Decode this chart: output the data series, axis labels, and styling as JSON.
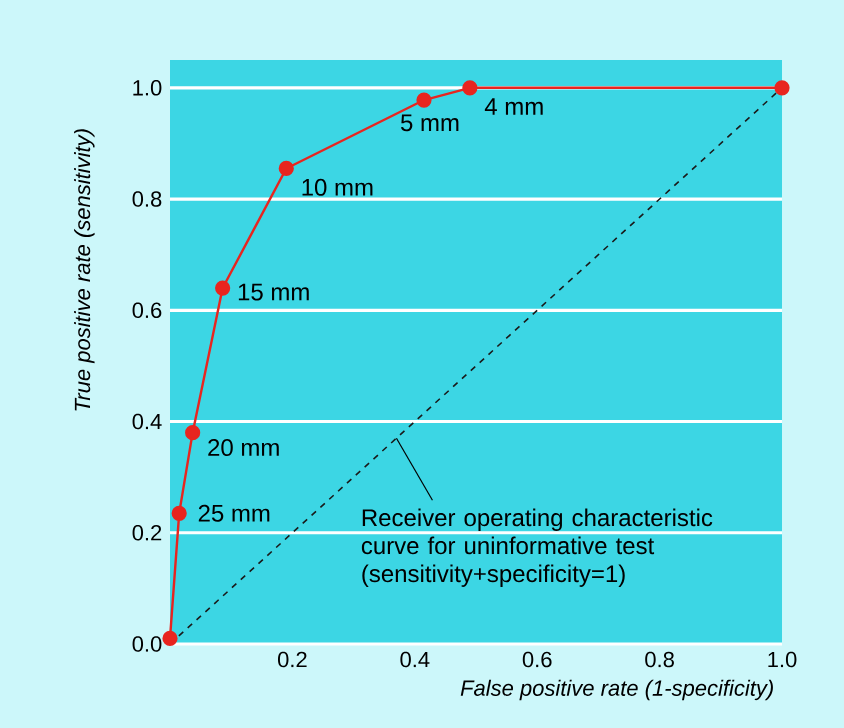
{
  "chart_data": {
    "type": "line",
    "xlabel": "False positive rate (1-specificity)",
    "ylabel": "True positive rate (sensitivity)",
    "xlim": [
      0,
      1.0
    ],
    "ylim": [
      0,
      1.05
    ],
    "xticks": [
      {
        "value": 0.2,
        "label": "0.2"
      },
      {
        "value": 0.4,
        "label": "0.4"
      },
      {
        "value": 0.6,
        "label": "0.6"
      },
      {
        "value": 0.8,
        "label": "0.8"
      },
      {
        "value": 1.0,
        "label": "1.0"
      }
    ],
    "yticks": [
      {
        "value": 0,
        "label": "0.0"
      },
      {
        "value": 0.2,
        "label": "0.2"
      },
      {
        "value": 0.4,
        "label": "0.4"
      },
      {
        "value": 0.6,
        "label": "0.6"
      },
      {
        "value": 0.8,
        "label": "0.8"
      },
      {
        "value": 1.0,
        "label": "1.0"
      }
    ],
    "grid": "y",
    "series": [
      {
        "color": "#e8251f",
        "x": [
          0,
          0.015,
          0.037,
          0.086,
          0.19,
          0.415,
          0.49,
          1.0
        ],
        "values": [
          0.01,
          0.235,
          0.38,
          0.64,
          0.855,
          0.978,
          1.0,
          1.0
        ],
        "marker": "circle",
        "line_style": "solid"
      },
      {
        "color": "#1a1a1a",
        "x": [
          0,
          1.0
        ],
        "values": [
          0,
          1.0
        ],
        "marker": "none",
        "line_style": "dashed"
      }
    ],
    "annotations": [
      {
        "text": "25 mm",
        "x": 0.015,
        "y": 0.235
      },
      {
        "text": "20 mm",
        "x": 0.037,
        "y": 0.38
      },
      {
        "text": "15 mm",
        "x": 0.086,
        "y": 0.64
      },
      {
        "text": "10 mm",
        "x": 0.19,
        "y": 0.855
      },
      {
        "text": "5 mm",
        "x": 0.415,
        "y": 0.978
      },
      {
        "text": "4 mm",
        "x": 0.49,
        "y": 1.0
      },
      {
        "text": "Receiver operating characteristic curve for uninformative test (sensitivity+specificity=1)",
        "x": 0.37,
        "y": 0.37
      }
    ]
  }
}
